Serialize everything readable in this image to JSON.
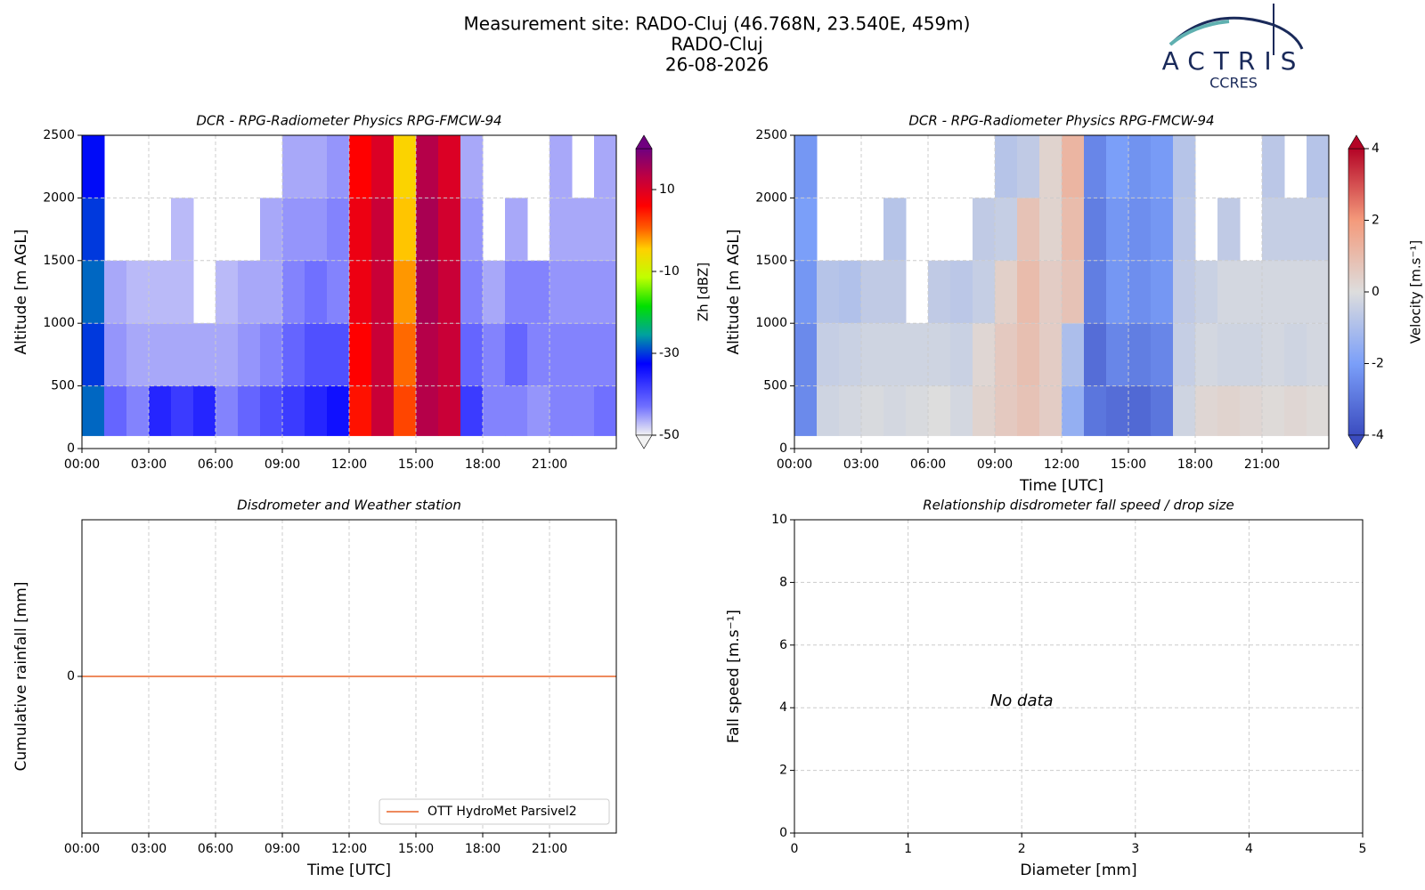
{
  "header": {
    "lines": [
      "Measurement site: RADO-Cluj (46.768N, 23.540E, 459m)",
      "RADO-Cluj",
      "26-08-2026"
    ]
  },
  "logo": {
    "name": "ACTRIS",
    "subtitle": "CCRES"
  },
  "chart_data": [
    {
      "type": "heatmap",
      "title": "DCR - RPG-Radiometer Physics RPG-FMCW-94",
      "y_label": "Altitude [m AGL]",
      "xlim": [
        0,
        24
      ],
      "xticks": [
        {
          "value": 0,
          "label": "00:00"
        },
        {
          "value": 3,
          "label": "03:00"
        },
        {
          "value": 6,
          "label": "06:00"
        },
        {
          "value": 9,
          "label": "09:00"
        },
        {
          "value": 12,
          "label": "12:00"
        },
        {
          "value": 15,
          "label": "15:00"
        },
        {
          "value": 18,
          "label": "18:00"
        },
        {
          "value": 21,
          "label": "21:00"
        }
      ],
      "ylim": [
        0,
        2500
      ],
      "yticks": [
        0,
        500,
        1000,
        1500,
        2000,
        2500
      ],
      "grid": true,
      "colormap": "reflectivity",
      "clim": [
        -50,
        20
      ],
      "cticks": [
        -50,
        -30,
        -10,
        10
      ],
      "clabel": "Zh [dBZ]",
      "x_edges": [
        0,
        1,
        2,
        3,
        4,
        5,
        6,
        7,
        8,
        9,
        10,
        11,
        12,
        13,
        14,
        15,
        16,
        17,
        18,
        19,
        20,
        21,
        22,
        23,
        24
      ],
      "y_edges": [
        100,
        500,
        1000,
        1500,
        2000,
        2500
      ],
      "z": [
        [
          -28,
          -42,
          -44,
          -36,
          -38,
          -36,
          -44,
          -42,
          -40,
          -38,
          -36,
          -34,
          5,
          12,
          2,
          14,
          12,
          -38,
          -44,
          -44,
          -45,
          -44,
          -44,
          -43
        ],
        [
          -30,
          -45,
          -46,
          -46,
          -46,
          -46,
          -46,
          -45,
          -44,
          -42,
          -40,
          -40,
          6,
          12,
          0,
          14,
          12,
          -42,
          -44,
          -42,
          -44,
          -44,
          -44,
          -44
        ],
        [
          -28,
          -46,
          -47,
          -47,
          -47,
          null,
          -47,
          -46,
          -46,
          -44,
          -43,
          -44,
          8,
          12,
          -2,
          15,
          12,
          -44,
          -46,
          -44,
          -44,
          -45,
          -45,
          -45
        ],
        [
          -30,
          null,
          null,
          null,
          -47,
          null,
          null,
          null,
          -46,
          -45,
          -45,
          -44,
          8,
          12,
          -4,
          15,
          11,
          -45,
          null,
          -46,
          null,
          -46,
          -46,
          -46
        ],
        [
          -32,
          null,
          null,
          null,
          null,
          null,
          null,
          null,
          null,
          -46,
          -46,
          -45,
          6,
          10,
          -5,
          14,
          10,
          -46,
          null,
          null,
          null,
          -46,
          null,
          -46
        ]
      ]
    },
    {
      "type": "heatmap",
      "title": "DCR - RPG-Radiometer Physics RPG-FMCW-94",
      "y_label": "Altitude [m AGL]",
      "x_label": "Time [UTC]",
      "xlim": [
        0,
        24
      ],
      "xticks": [
        {
          "value": 0,
          "label": "00:00"
        },
        {
          "value": 3,
          "label": "03:00"
        },
        {
          "value": 6,
          "label": "06:00"
        },
        {
          "value": 9,
          "label": "09:00"
        },
        {
          "value": 12,
          "label": "12:00"
        },
        {
          "value": 15,
          "label": "15:00"
        },
        {
          "value": 18,
          "label": "18:00"
        },
        {
          "value": 21,
          "label": "21:00"
        }
      ],
      "ylim": [
        0,
        2500
      ],
      "yticks": [
        0,
        500,
        1000,
        1500,
        2000,
        2500
      ],
      "grid": true,
      "colormap": "coolwarm",
      "clim": [
        -4,
        4
      ],
      "cticks": [
        -4,
        -2,
        0,
        2,
        4
      ],
      "clabel": "Velocity [m.s⁻¹]",
      "x_edges": [
        0,
        1,
        2,
        3,
        4,
        5,
        6,
        7,
        8,
        9,
        10,
        11,
        12,
        13,
        14,
        15,
        16,
        17,
        18,
        19,
        20,
        21,
        22,
        23,
        24
      ],
      "y_edges": [
        100,
        500,
        1000,
        1500,
        2000,
        2500
      ],
      "z": [
        [
          -2.5,
          -0.3,
          -0.2,
          -0.1,
          -0.2,
          -0.1,
          0,
          -0.2,
          0.3,
          0.6,
          0.8,
          0.5,
          -1.5,
          -3,
          -3.2,
          -3.3,
          -3,
          -0.3,
          0.2,
          0.3,
          0.2,
          0.1,
          0.2,
          0.1
        ],
        [
          -2.5,
          -0.5,
          -0.4,
          -0.3,
          -0.3,
          -0.3,
          -0.3,
          -0.4,
          0.2,
          0.6,
          0.9,
          0.5,
          -1,
          -3.2,
          -2.6,
          -2.8,
          -2.6,
          -0.5,
          -0.2,
          -0.3,
          -0.3,
          -0.2,
          -0.3,
          -0.2
        ],
        [
          -2.2,
          -0.8,
          -0.9,
          -0.6,
          -0.6,
          null,
          -0.6,
          -0.7,
          -0.5,
          0.4,
          1,
          0.5,
          0.8,
          -2.8,
          -2.2,
          -2.4,
          -2.2,
          -0.6,
          -0.4,
          -0.2,
          -0.2,
          -0.2,
          -0.2,
          -0.2
        ],
        [
          -2,
          null,
          null,
          null,
          -0.8,
          null,
          null,
          null,
          -0.6,
          -0.5,
          0.8,
          0.3,
          1,
          -2.8,
          -2.2,
          -2.4,
          -2.2,
          -0.7,
          null,
          -0.6,
          null,
          -0.5,
          -0.5,
          -0.5
        ],
        [
          -2.2,
          null,
          null,
          null,
          null,
          null,
          null,
          null,
          null,
          -0.8,
          -0.6,
          0.3,
          1.2,
          -2.6,
          -2,
          -2.3,
          -2.1,
          -0.8,
          null,
          null,
          null,
          -0.7,
          null,
          -0.8
        ]
      ]
    },
    {
      "type": "line",
      "title": "Disdrometer and Weather station",
      "y_label": "Cumulative rainfall [mm]",
      "x_label": "Time [UTC]",
      "xlim": [
        0,
        24
      ],
      "xticks": [
        {
          "value": 0,
          "label": "00:00"
        },
        {
          "value": 3,
          "label": "03:00"
        },
        {
          "value": 6,
          "label": "06:00"
        },
        {
          "value": 9,
          "label": "09:00"
        },
        {
          "value": 12,
          "label": "12:00"
        },
        {
          "value": 15,
          "label": "15:00"
        },
        {
          "value": 18,
          "label": "18:00"
        },
        {
          "value": 21,
          "label": "21:00"
        }
      ],
      "ylim": [
        -0.055,
        0.055
      ],
      "yticks": [
        0
      ],
      "grid": true,
      "legend": "lower right",
      "x": [
        0,
        24
      ],
      "series": [
        {
          "name": "OTT HydroMet Parsivel2",
          "color": "#ee8a5e",
          "values": [
            0,
            0
          ]
        }
      ]
    },
    {
      "type": "scatter",
      "title": "Relationship disdrometer fall speed / drop size",
      "y_label": "Fall speed [m.s⁻¹]",
      "x_label": "Diameter [mm]",
      "xlim": [
        0,
        5
      ],
      "xticks": [
        0,
        1,
        2,
        3,
        4,
        5
      ],
      "ylim": [
        0,
        10
      ],
      "yticks": [
        0,
        2,
        4,
        6,
        8,
        10
      ],
      "grid": true,
      "annotation": "No data",
      "x": [],
      "values": []
    }
  ]
}
